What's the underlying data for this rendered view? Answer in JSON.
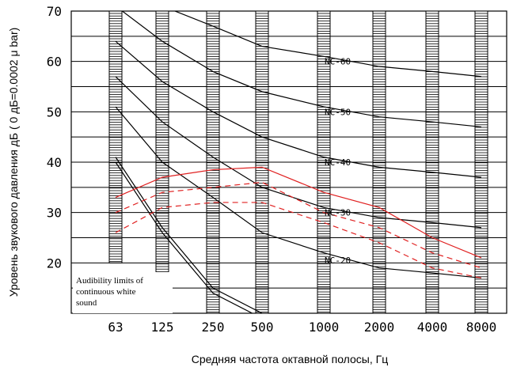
{
  "chart_data": {
    "type": "line",
    "ylabel": "Уровень звукового давления дБ ( 0 дБ=0.0002 μ bar)",
    "xlabel": "Средняя частота октавной полосы, Гц",
    "ylim": [
      10,
      70
    ],
    "y_ticks": [
      20,
      30,
      40,
      50,
      60,
      70
    ],
    "x_categories": [
      "63",
      "125",
      "250",
      "500",
      "1000",
      "2000",
      "4000",
      "8000"
    ],
    "grid": true,
    "nc_curves": [
      {
        "label": "NC-60",
        "x": [
          "63",
          "125",
          "250",
          "500",
          "1000",
          "2000",
          "4000",
          "8000"
        ],
        "values": [
          77,
          71,
          67,
          63,
          61,
          59,
          58,
          57
        ]
      },
      {
        "label": "NC-50",
        "x": [
          "63",
          "125",
          "250",
          "500",
          "1000",
          "2000",
          "4000",
          "8000"
        ],
        "values": [
          71,
          64,
          58,
          54,
          51,
          49,
          48,
          47
        ]
      },
      {
        "label": "NC-40",
        "x": [
          "63",
          "125",
          "250",
          "500",
          "1000",
          "2000",
          "4000",
          "8000"
        ],
        "values": [
          64,
          56,
          50,
          45,
          41,
          39,
          38,
          37
        ]
      },
      {
        "label": "NC-30",
        "x": [
          "63",
          "125",
          "250",
          "500",
          "1000",
          "2000",
          "4000",
          "8000"
        ],
        "values": [
          57,
          48,
          41,
          35,
          31,
          29,
          28,
          27
        ]
      },
      {
        "label": "NC-20",
        "x": [
          "63",
          "125",
          "250",
          "500",
          "1000",
          "2000",
          "4000",
          "8000"
        ],
        "values": [
          51,
          40,
          33,
          26,
          22,
          19,
          18,
          17
        ]
      }
    ],
    "red_curves": [
      {
        "style": "solid",
        "x": [
          "63",
          "125",
          "250",
          "500",
          "1000",
          "2000",
          "4000",
          "8000"
        ],
        "values": [
          33,
          37,
          38.5,
          39,
          34,
          31,
          25,
          21
        ]
      },
      {
        "style": "dashed",
        "x": [
          "63",
          "125",
          "250",
          "500",
          "1000",
          "2000",
          "4000",
          "8000"
        ],
        "values": [
          30,
          34,
          35,
          36,
          30,
          27,
          22,
          19
        ]
      },
      {
        "style": "dashed",
        "x": [
          "63",
          "125",
          "250",
          "500",
          "1000",
          "2000",
          "4000",
          "8000"
        ],
        "values": [
          26,
          31,
          32,
          32,
          28,
          24,
          19,
          17
        ]
      }
    ],
    "audibility_limits": [
      {
        "x": [
          "63",
          "125",
          "250",
          "500"
        ],
        "values": [
          41,
          27,
          15,
          10
        ]
      },
      {
        "x": [
          "63",
          "125",
          "250",
          "500"
        ],
        "values": [
          40,
          26,
          14,
          9
        ]
      }
    ],
    "annotation": [
      "Audibility limits of",
      "continuous white",
      "sound"
    ],
    "colors": {
      "nc": "#000000",
      "red": "#e02020"
    }
  }
}
